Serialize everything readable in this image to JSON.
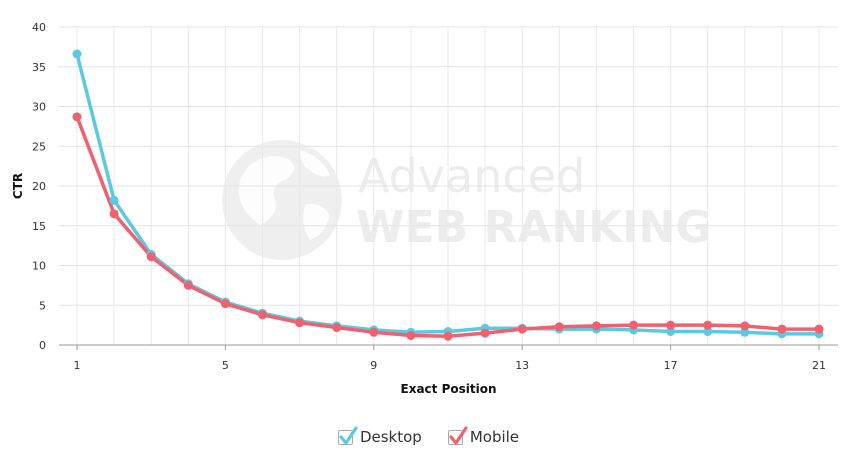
{
  "chart_data": {
    "type": "line",
    "xlabel": "Exact Position",
    "ylabel": "CTR",
    "xlim": [
      1,
      21
    ],
    "ylim": [
      0,
      40
    ],
    "x_ticks": [
      1,
      5,
      9,
      13,
      17,
      21
    ],
    "y_ticks": [
      0,
      5,
      10,
      15,
      20,
      25,
      30,
      35,
      40
    ],
    "grid": true,
    "legend": "bottom-center",
    "x": [
      1,
      2,
      3,
      4,
      5,
      6,
      7,
      8,
      9,
      10,
      11,
      12,
      13,
      14,
      15,
      16,
      17,
      18,
      19,
      20,
      21
    ],
    "series": [
      {
        "name": "Desktop",
        "color": "#5bc9e1",
        "values": [
          36.6,
          18.2,
          11.4,
          7.7,
          5.4,
          4.0,
          3.0,
          2.4,
          1.9,
          1.6,
          1.7,
          2.1,
          2.1,
          2.0,
          2.0,
          1.9,
          1.7,
          1.7,
          1.6,
          1.4,
          1.4
        ]
      },
      {
        "name": "Mobile",
        "color": "#f0606e",
        "values": [
          28.7,
          16.5,
          11.1,
          7.5,
          5.2,
          3.8,
          2.8,
          2.2,
          1.6,
          1.2,
          1.1,
          1.5,
          2.0,
          2.3,
          2.4,
          2.5,
          2.5,
          2.5,
          2.4,
          2.0,
          2.0
        ]
      }
    ]
  },
  "watermark": {
    "line1": "Advanced",
    "line2": "WEB RANKING",
    "icon": "globe-icon"
  },
  "legend": {
    "items": [
      {
        "label": "Desktop",
        "color": "#5bc9e1",
        "icon": "checkbox-checked-icon"
      },
      {
        "label": "Mobile",
        "color": "#f0606e",
        "icon": "checkbox-checked-icon"
      }
    ]
  }
}
